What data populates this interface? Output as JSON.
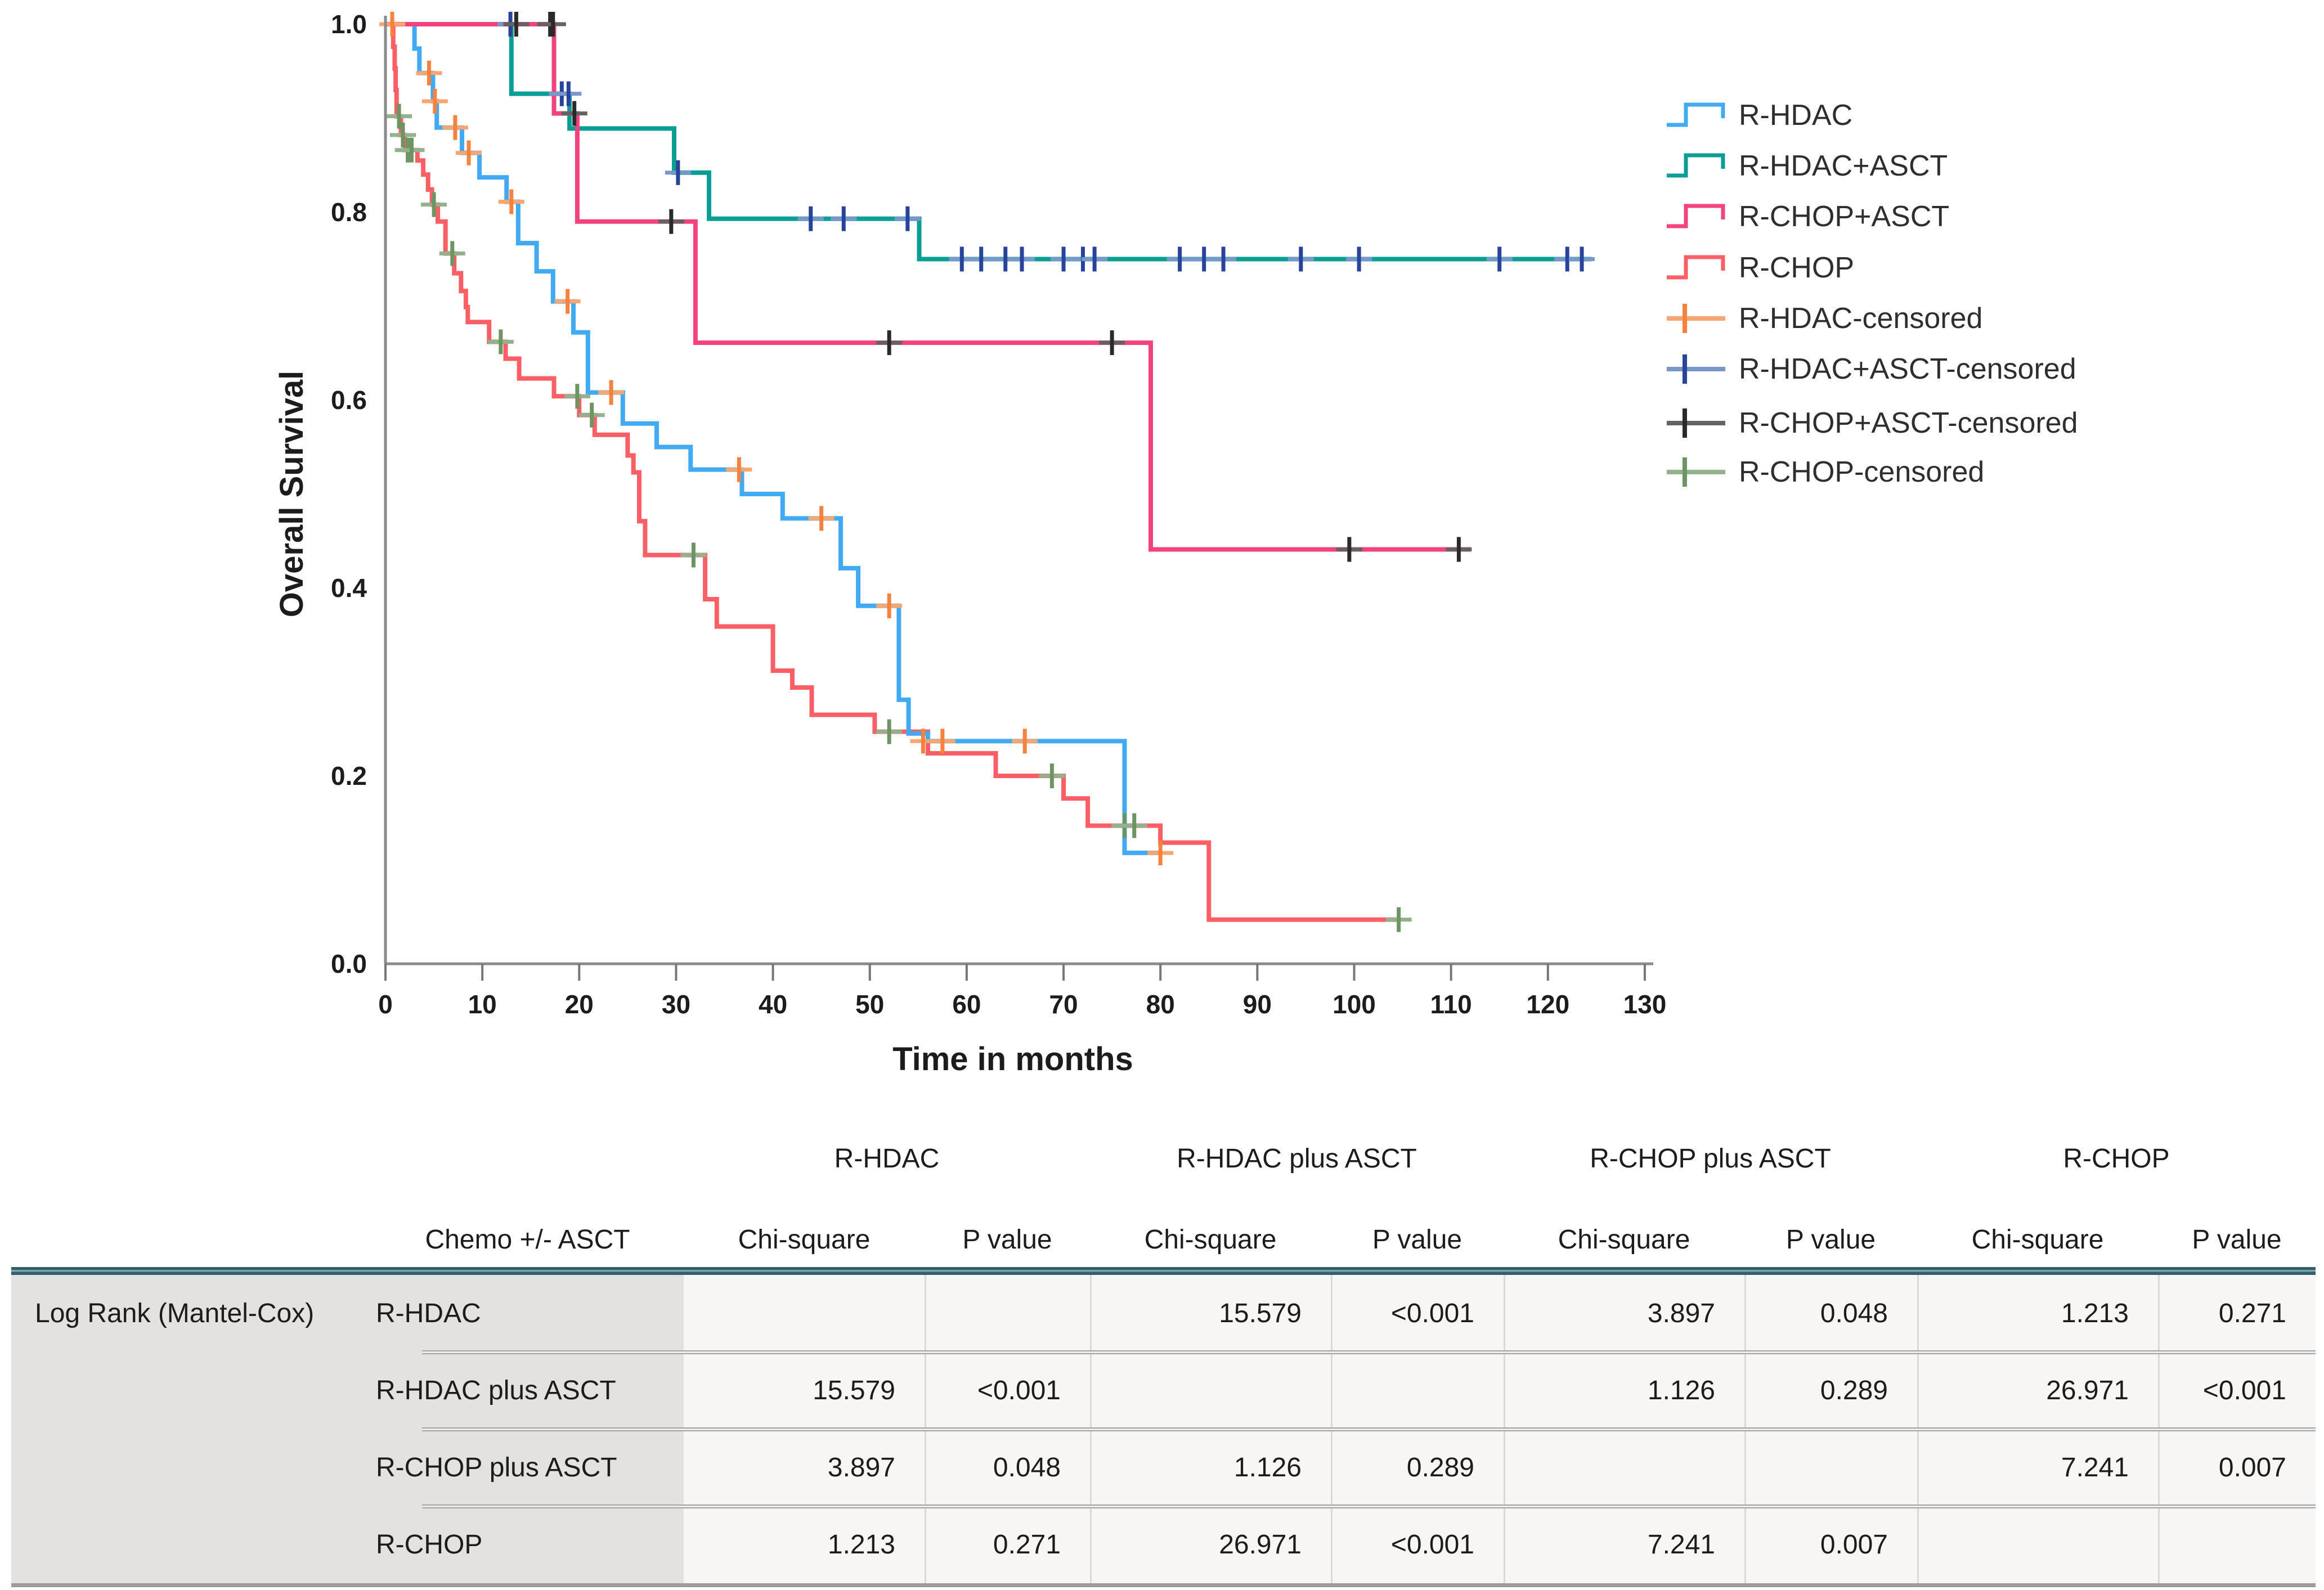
{
  "chart_data": {
    "type": "line",
    "subtype": "kaplan-meier-step-survival",
    "title": "",
    "xlabel": "Time in months",
    "ylabel": "Overall Survival",
    "xlim": [
      0,
      130
    ],
    "ylim": [
      0.0,
      1.0
    ],
    "x_ticks": [
      0,
      10,
      20,
      30,
      40,
      50,
      60,
      70,
      80,
      90,
      100,
      110,
      120,
      130
    ],
    "y_ticks": [
      "0.0",
      "0.2",
      "0.4",
      "0.6",
      "0.8",
      "1.0"
    ],
    "grid": "off",
    "legend_position": "right",
    "series": [
      {
        "name": "R-HDAC",
        "color": "#41AAF2",
        "censor_color": "#F8813E",
        "censor_color2": "#FBA671",
        "points": [
          [
            0,
            1.0
          ],
          [
            3.0,
            0.974
          ],
          [
            3.5,
            0.948
          ],
          [
            4.9,
            0.918
          ],
          [
            5.3,
            0.89
          ],
          [
            7.9,
            0.863
          ],
          [
            9.7,
            0.837
          ],
          [
            12.5,
            0.811
          ],
          [
            13.7,
            0.767
          ],
          [
            15.6,
            0.737
          ],
          [
            17.3,
            0.705
          ],
          [
            19.4,
            0.672
          ],
          [
            20.9,
            0.608
          ],
          [
            24.5,
            0.575
          ],
          [
            28,
            0.55
          ],
          [
            31.5,
            0.526
          ],
          [
            36.8,
            0.5
          ],
          [
            41,
            0.474
          ],
          [
            47,
            0.421
          ],
          [
            48.8,
            0.381
          ],
          [
            53,
            0.281
          ],
          [
            54,
            0.245
          ],
          [
            56,
            0.237
          ],
          [
            76.3,
            0.118
          ],
          [
            80.2,
            0.118
          ]
        ],
        "censored": [
          [
            0.7,
            1.0
          ],
          [
            4.5,
            0.948
          ],
          [
            5.1,
            0.918
          ],
          [
            7.2,
            0.89
          ],
          [
            8.6,
            0.863
          ],
          [
            13.0,
            0.811
          ],
          [
            18.8,
            0.705
          ],
          [
            23.3,
            0.608
          ],
          [
            36.5,
            0.526
          ],
          [
            45,
            0.474
          ],
          [
            52,
            0.381
          ],
          [
            55.5,
            0.237
          ],
          [
            57.5,
            0.237
          ],
          [
            66,
            0.237
          ],
          [
            80,
            0.118
          ]
        ]
      },
      {
        "name": "R-HDAC+ASCT",
        "color": "#0B9E95",
        "censor_color": "#27439B",
        "censor_color2": "#7A97CB",
        "points": [
          [
            0,
            1.0
          ],
          [
            13,
            0.926
          ],
          [
            19,
            0.889
          ],
          [
            29.8,
            0.842
          ],
          [
            33.4,
            0.793
          ],
          [
            55.1,
            0.75
          ],
          [
            124.5,
            0.75
          ]
        ],
        "censored": [
          [
            12.9,
            1.0
          ],
          [
            18.2,
            0.926
          ],
          [
            18.9,
            0.926
          ],
          [
            30.2,
            0.842
          ],
          [
            43.9,
            0.793
          ],
          [
            47.3,
            0.793
          ],
          [
            53.9,
            0.793
          ],
          [
            59.5,
            0.75
          ],
          [
            61.5,
            0.75
          ],
          [
            64,
            0.75
          ],
          [
            65.7,
            0.75
          ],
          [
            70,
            0.75
          ],
          [
            72,
            0.75
          ],
          [
            73.2,
            0.75
          ],
          [
            82,
            0.75
          ],
          [
            84.5,
            0.75
          ],
          [
            86.5,
            0.75
          ],
          [
            94.5,
            0.75
          ],
          [
            100.5,
            0.75
          ],
          [
            115,
            0.75
          ],
          [
            122,
            0.75
          ],
          [
            123.5,
            0.75
          ]
        ]
      },
      {
        "name": "R-CHOP+ASCT",
        "color": "#F2437F",
        "censor_color": "#2A2A2A",
        "censor_color2": "#636363",
        "points": [
          [
            0,
            1.0
          ],
          [
            17.4,
            0.905
          ],
          [
            19.8,
            0.79
          ],
          [
            32,
            0.661
          ],
          [
            79,
            0.441
          ],
          [
            112,
            0.441
          ]
        ],
        "censored": [
          [
            13.5,
            1.0
          ],
          [
            17,
            1.0
          ],
          [
            17.3,
            1.0
          ],
          [
            19.5,
            0.905
          ],
          [
            29.5,
            0.79
          ],
          [
            52,
            0.661
          ],
          [
            75,
            0.661
          ],
          [
            99.5,
            0.441
          ],
          [
            110.8,
            0.441
          ]
        ]
      },
      {
        "name": "R-CHOP",
        "color": "#FB5F66",
        "censor_color": "#6D9562",
        "censor_color2": "#93B18C",
        "points": [
          [
            0,
            1.0
          ],
          [
            0.8,
            0.976
          ],
          [
            0.95,
            0.953
          ],
          [
            1.05,
            0.93
          ],
          [
            1.15,
            0.902
          ],
          [
            1.6,
            0.882
          ],
          [
            2.0,
            0.866
          ],
          [
            3.3,
            0.855
          ],
          [
            3.9,
            0.84
          ],
          [
            4.4,
            0.824
          ],
          [
            4.8,
            0.808
          ],
          [
            5.4,
            0.79
          ],
          [
            6.2,
            0.756
          ],
          [
            7.1,
            0.735
          ],
          [
            7.8,
            0.716
          ],
          [
            8.3,
            0.699
          ],
          [
            8.5,
            0.683
          ],
          [
            10.7,
            0.662
          ],
          [
            12.4,
            0.644
          ],
          [
            13.8,
            0.623
          ],
          [
            17.4,
            0.604
          ],
          [
            20,
            0.584
          ],
          [
            21.6,
            0.563
          ],
          [
            25,
            0.541
          ],
          [
            25.6,
            0.523
          ],
          [
            26.2,
            0.471
          ],
          [
            26.8,
            0.435
          ],
          [
            33,
            0.388
          ],
          [
            34.2,
            0.359
          ],
          [
            40,
            0.312
          ],
          [
            42,
            0.294
          ],
          [
            44,
            0.265
          ],
          [
            50.5,
            0.247
          ],
          [
            56,
            0.224
          ],
          [
            63,
            0.2
          ],
          [
            70,
            0.176
          ],
          [
            72.5,
            0.147
          ],
          [
            80,
            0.129
          ],
          [
            85,
            0.047
          ],
          [
            104.6,
            0.047
          ]
        ],
        "censored": [
          [
            1.4,
            0.902
          ],
          [
            1.8,
            0.882
          ],
          [
            2.3,
            0.866
          ],
          [
            2.7,
            0.866
          ],
          [
            5.0,
            0.808
          ],
          [
            6.9,
            0.756
          ],
          [
            11.9,
            0.662
          ],
          [
            19.8,
            0.604
          ],
          [
            21.3,
            0.584
          ],
          [
            31.8,
            0.435
          ],
          [
            52,
            0.247
          ],
          [
            68.8,
            0.2
          ],
          [
            76.3,
            0.147
          ],
          [
            77.3,
            0.147
          ],
          [
            104.6,
            0.047
          ]
        ]
      }
    ],
    "legend": [
      {
        "label": "R-HDAC",
        "glyph": "step",
        "color": "#41AAF2",
        "color2": "#41AAF2"
      },
      {
        "label": "R-HDAC+ASCT",
        "glyph": "step",
        "color": "#0B9E95",
        "color2": "#0B9E95"
      },
      {
        "label": "R-CHOP+ASCT",
        "glyph": "step",
        "color": "#F2437F",
        "color2": "#F2437F"
      },
      {
        "label": "R-CHOP",
        "glyph": "step",
        "color": "#FB5F66",
        "color2": "#FB5F66"
      },
      {
        "label": "R-HDAC-censored",
        "glyph": "plus",
        "color": "#F8813E",
        "color2": "#FBA671"
      },
      {
        "label": "R-HDAC+ASCT-censored",
        "glyph": "plus",
        "color": "#27439B",
        "color2": "#7A97CB"
      },
      {
        "label": "R-CHOP+ASCT-censored",
        "glyph": "plus",
        "color": "#2A2A2A",
        "color2": "#636363"
      },
      {
        "label": "R-CHOP-censored",
        "glyph": "plus",
        "color": "#6D9562",
        "color2": "#93B18C"
      }
    ]
  },
  "stats_table": {
    "corner_label": "Log Rank (Mantel-Cox)",
    "row_header_label": "Chemo +/- ASCT",
    "groups": [
      "R-HDAC",
      "R-HDAC plus ASCT",
      "R-CHOP plus ASCT",
      "R-CHOP"
    ],
    "sub_headers": [
      "Chi-square",
      "P value"
    ],
    "rows": [
      {
        "label": "R-HDAC",
        "values": [
          "",
          "",
          "15.579",
          "<0.001",
          "3.897",
          "0.048",
          "1.213",
          "0.271"
        ]
      },
      {
        "label": "R-HDAC plus ASCT",
        "values": [
          "15.579",
          "<0.001",
          "",
          "",
          "1.126",
          "0.289",
          "26.971",
          "<0.001"
        ]
      },
      {
        "label": "R-CHOP plus ASCT",
        "values": [
          "3.897",
          "0.048",
          "1.126",
          "0.289",
          "",
          "",
          "7.241",
          "0.007"
        ]
      },
      {
        "label": "R-CHOP",
        "values": [
          "1.213",
          "0.271",
          "26.971",
          "<0.001",
          "7.241",
          "0.007",
          "",
          ""
        ]
      }
    ],
    "colors": {
      "stub_bg": "#e3e2e1",
      "data_bg": "#f7f6f5",
      "band": "#305f6b"
    }
  }
}
